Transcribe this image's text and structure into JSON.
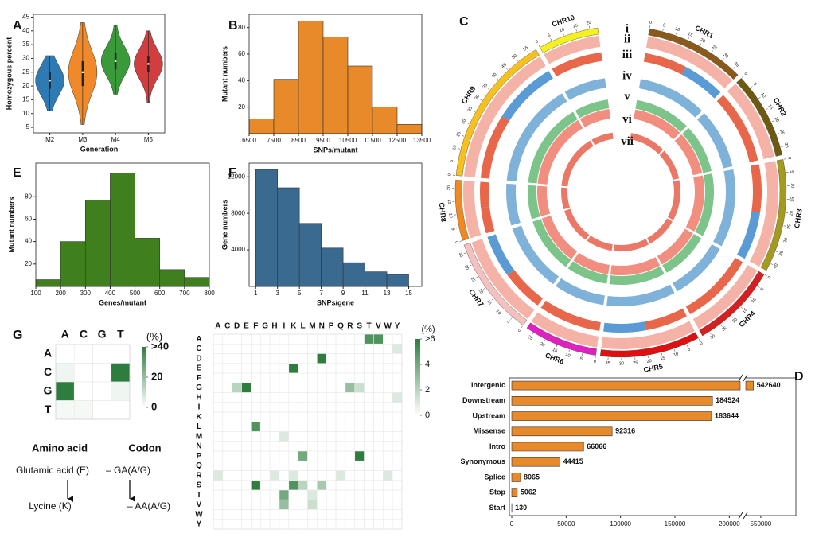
{
  "chart_data": [
    {
      "type": "violin",
      "label": "A",
      "ylabel": "Homozygous percent",
      "xlabel": "Generation",
      "categories": [
        "M2",
        "M3",
        "M4",
        "M5"
      ],
      "series": [
        {
          "name": "M2",
          "color": "#2e7bb4",
          "min": 11,
          "q1": 19,
          "median": 22,
          "q3": 25,
          "max": 31
        },
        {
          "name": "M3",
          "color": "#f0892a",
          "min": 6,
          "q1": 20,
          "median": 25,
          "q3": 29,
          "max": 43
        },
        {
          "name": "M4",
          "color": "#3a9a3a",
          "min": 17,
          "q1": 26,
          "median": 29,
          "q3": 32,
          "max": 42
        },
        {
          "name": "M5",
          "color": "#d23d3d",
          "min": 14,
          "q1": 25,
          "median": 28,
          "q3": 31,
          "max": 40
        }
      ],
      "ylim": [
        3,
        46
      ],
      "yticks": [
        5,
        10,
        15,
        20,
        25,
        30,
        35,
        40,
        45
      ]
    },
    {
      "type": "histogram",
      "label": "B",
      "xlabel": "SNPs/mutant",
      "ylabel": "Mutant numbers",
      "color": "#e8892a",
      "bins": [
        6500,
        7500,
        8500,
        9500,
        10500,
        11500,
        12500,
        13500
      ],
      "counts": [
        11,
        41,
        85,
        73,
        51,
        20,
        7
      ],
      "xlim": [
        6500,
        13500
      ],
      "xticks": [
        6500,
        7500,
        8500,
        9500,
        10500,
        11500,
        12500,
        13500
      ],
      "ylim": [
        0,
        90
      ],
      "yticks": [
        20,
        40,
        60,
        80
      ]
    },
    {
      "type": "histogram",
      "label": "E",
      "xlabel": "Genes/mutant",
      "ylabel": "Mutant numbers",
      "color": "#3f7f1e",
      "bins": [
        100,
        200,
        300,
        400,
        500,
        600,
        700,
        800
      ],
      "counts": [
        6,
        40,
        77,
        101,
        43,
        15,
        8
      ],
      "xlim": [
        100,
        800
      ],
      "xticks": [
        100,
        200,
        300,
        400,
        500,
        600,
        700,
        800
      ],
      "ylim": [
        0,
        110
      ],
      "yticks": [
        20,
        40,
        60,
        80
      ]
    },
    {
      "type": "histogram",
      "label": "F",
      "xlabel": "SNPs/gene",
      "ylabel": "Gene numbers",
      "color": "#3a6a8f",
      "bins": [
        1,
        3,
        5,
        7,
        9,
        11,
        13,
        15
      ],
      "counts": [
        12800,
        10800,
        6900,
        4200,
        2600,
        1600,
        1300
      ],
      "xlim": [
        0.4,
        16.2
      ],
      "xticks": [
        1,
        3,
        5,
        7,
        9,
        11,
        13,
        15
      ],
      "ylim": [
        0,
        13500
      ],
      "yticks": [
        4000,
        8000,
        12000
      ]
    },
    {
      "type": "bar",
      "label": "D",
      "orientation": "horizontal",
      "color": "#e8892a",
      "categories": [
        "Intergenic",
        "Downstream",
        "Upstream",
        "Missense",
        "Intro",
        "Synonymous",
        "Splice",
        "Stop",
        "Start"
      ],
      "values": [
        542640,
        184524,
        183644,
        92316,
        66066,
        44415,
        8065,
        5062,
        130
      ],
      "xlim": [
        0,
        585000
      ],
      "axis_break": [
        210000,
        535000
      ],
      "xticks": [
        0,
        50000,
        100000,
        150000,
        200000,
        550000
      ]
    },
    {
      "type": "heatmap",
      "label": "G",
      "color": "#2e7d3f",
      "columns": [
        "A",
        "C",
        "G",
        "T"
      ],
      "rows": [
        "A",
        "C",
        "G",
        "T"
      ],
      "values": [
        [
          0,
          0,
          0,
          0
        ],
        [
          3,
          0,
          0,
          42
        ],
        [
          42,
          0,
          0,
          3
        ],
        [
          2,
          2,
          0,
          0
        ]
      ],
      "colorbar": {
        "title": "(%)",
        "lim": [
          0,
          40
        ],
        "ticks": [
          {
            "value": 40,
            "label": ">40"
          },
          20,
          0
        ]
      },
      "annotations": [
        "Amino acid",
        "Codon",
        "Glutamic acid (E)",
        "– GA(A/G)",
        "Lycine (K)",
        "– AA(A/G)"
      ]
    },
    {
      "type": "heatmap",
      "color": "#2e7d3f",
      "columns": [
        "A",
        "C",
        "D",
        "E",
        "F",
        "G",
        "H",
        "I",
        "K",
        "L",
        "M",
        "N",
        "P",
        "Q",
        "R",
        "S",
        "T",
        "V",
        "W",
        "Y"
      ],
      "rows": [
        "A",
        "C",
        "D",
        "E",
        "F",
        "G",
        "H",
        "I",
        "K",
        "L",
        "M",
        "N",
        "P",
        "Q",
        "R",
        "S",
        "T",
        "V",
        "W",
        "Y"
      ],
      "values": [
        [
          0,
          0,
          0,
          0,
          0,
          0,
          0,
          0,
          0,
          0,
          0,
          0,
          0,
          0,
          0,
          0,
          5,
          5,
          0,
          0
        ],
        [
          0,
          0,
          0,
          0,
          0,
          0,
          0,
          0,
          0,
          0,
          0,
          0,
          0,
          0,
          0,
          0,
          0,
          0,
          0,
          1
        ],
        [
          0,
          0,
          0,
          0,
          0,
          0,
          0,
          0,
          0,
          0,
          0,
          6,
          0,
          0,
          0,
          0,
          0,
          0,
          0,
          0
        ],
        [
          0,
          0,
          0,
          0,
          0,
          0,
          0,
          0,
          6,
          0,
          0,
          0,
          0,
          0,
          0,
          0,
          0,
          0,
          0,
          0
        ],
        [
          0,
          0,
          0,
          0,
          0,
          0,
          0,
          0,
          0,
          0,
          0,
          0,
          0,
          0,
          0,
          0,
          0,
          0,
          0,
          0
        ],
        [
          0,
          0,
          2,
          6,
          0,
          0,
          0,
          0,
          0,
          0,
          0,
          0,
          0,
          0,
          3,
          1.5,
          0,
          0,
          0,
          0
        ],
        [
          0,
          0,
          0,
          0,
          0,
          0,
          0,
          0,
          0,
          0,
          0,
          0,
          0,
          0,
          0,
          0,
          0,
          0,
          0,
          1
        ],
        [
          0,
          0,
          0,
          0,
          0,
          0,
          0,
          0,
          0,
          0,
          0,
          0,
          0,
          0,
          0,
          0,
          0,
          0,
          0,
          0
        ],
        [
          0,
          0,
          0,
          0,
          0,
          0,
          0,
          0,
          0,
          0,
          0,
          0,
          0,
          0,
          0,
          0,
          0,
          0,
          0,
          0
        ],
        [
          0,
          0,
          0,
          0,
          5,
          0,
          0,
          0,
          0,
          0,
          0,
          0,
          0,
          0,
          0,
          0,
          0,
          0,
          0,
          0
        ],
        [
          0,
          0,
          0,
          0,
          0,
          0,
          0,
          1,
          0,
          0,
          0,
          0,
          0,
          0,
          0,
          0,
          0,
          0,
          0,
          0
        ],
        [
          0,
          0,
          0,
          0,
          0,
          0,
          0,
          0,
          0,
          0,
          0,
          0,
          0,
          0,
          0,
          0,
          0,
          0,
          0,
          0
        ],
        [
          0,
          0,
          0,
          0,
          0,
          0,
          0,
          0,
          0,
          4,
          0,
          0,
          0,
          0,
          0,
          6,
          0,
          0,
          0,
          0
        ],
        [
          0,
          0,
          0,
          0,
          0,
          0,
          0,
          0,
          0,
          0,
          0,
          0,
          0,
          0,
          0,
          0,
          0,
          0,
          0,
          0
        ],
        [
          1,
          0,
          0,
          0,
          0,
          0,
          1,
          0,
          1,
          0,
          0,
          0,
          0,
          1,
          0,
          0,
          0,
          0,
          1,
          0
        ],
        [
          0,
          0,
          0,
          0,
          6,
          0,
          0,
          0,
          5,
          2,
          0,
          2.5,
          0,
          0,
          0,
          0,
          0,
          0,
          0,
          0
        ],
        [
          0,
          0,
          0,
          0,
          0,
          0,
          0,
          4,
          0,
          0,
          1,
          0,
          0,
          0,
          0,
          0,
          0,
          0,
          0,
          0
        ],
        [
          0,
          0,
          0,
          0,
          0,
          0,
          0,
          3,
          0,
          0,
          1.5,
          0,
          0,
          0,
          0,
          0,
          0,
          0,
          0,
          0
        ],
        [
          0,
          0,
          0,
          0,
          0,
          0,
          0,
          0,
          0,
          0,
          0,
          0,
          0,
          0,
          0,
          0,
          0,
          0,
          0,
          0
        ],
        [
          0,
          0,
          0,
          0,
          0,
          0,
          0,
          0,
          0,
          0,
          0,
          0,
          0,
          0,
          0,
          0,
          0,
          0,
          0,
          0
        ]
      ],
      "colorbar": {
        "title": "(%)",
        "lim": [
          0,
          6
        ],
        "ticks": [
          {
            "value": 6,
            "label": ">6"
          },
          4,
          2,
          0
        ]
      }
    },
    {
      "type": "circos",
      "label": "C",
      "chromosomes": [
        {
          "name": "CHR1",
          "color": "#8b5a1a",
          "ticks": [
            0,
            5,
            10,
            15,
            20,
            25,
            30,
            35
          ]
        },
        {
          "name": "CHR2",
          "color": "#6b5a10",
          "ticks": [
            0,
            5,
            10,
            15,
            20,
            25,
            30
          ]
        },
        {
          "name": "CHR3",
          "color": "#a39a20",
          "ticks": [
            0,
            5,
            10,
            15,
            20,
            25,
            30,
            35,
            40
          ]
        },
        {
          "name": "CHR4",
          "color": "#d42020",
          "ticks": [
            0,
            5,
            10,
            15,
            20,
            25,
            30
          ]
        },
        {
          "name": "CHR5",
          "color": "#e01010",
          "ticks": [
            0,
            5,
            10,
            15,
            20,
            25,
            30,
            35
          ]
        },
        {
          "name": "CHR6",
          "color": "#e020c0",
          "ticks": [
            0,
            5,
            10,
            15,
            20,
            25
          ]
        },
        {
          "name": "CHR7",
          "color": "#f5c0c0",
          "ticks": [
            0,
            5,
            10,
            15,
            20,
            25,
            30,
            35
          ]
        },
        {
          "name": "CHR8",
          "color": "#f08a20",
          "ticks": [
            0,
            5,
            10,
            15,
            20
          ]
        },
        {
          "name": "CHR9",
          "color": "#f5c020",
          "ticks": [
            0,
            5,
            10,
            15,
            20,
            25,
            30,
            35,
            40,
            45,
            50,
            55
          ]
        },
        {
          "name": "CHR10",
          "color": "#f5f020",
          "ticks": [
            0,
            5,
            10,
            15,
            20
          ]
        }
      ],
      "tracks": [
        {
          "name": "i"
        },
        {
          "name": "ii",
          "color": "#f19a8a"
        },
        {
          "name": "iii",
          "color": "#e8674a"
        },
        {
          "name": "iv",
          "color": "#7fb2d9"
        },
        {
          "name": "v",
          "color": "#7dc48a"
        },
        {
          "name": "vi",
          "color": "#ee7a68"
        },
        {
          "name": "vii",
          "color": "#e8604c"
        }
      ]
    }
  ]
}
